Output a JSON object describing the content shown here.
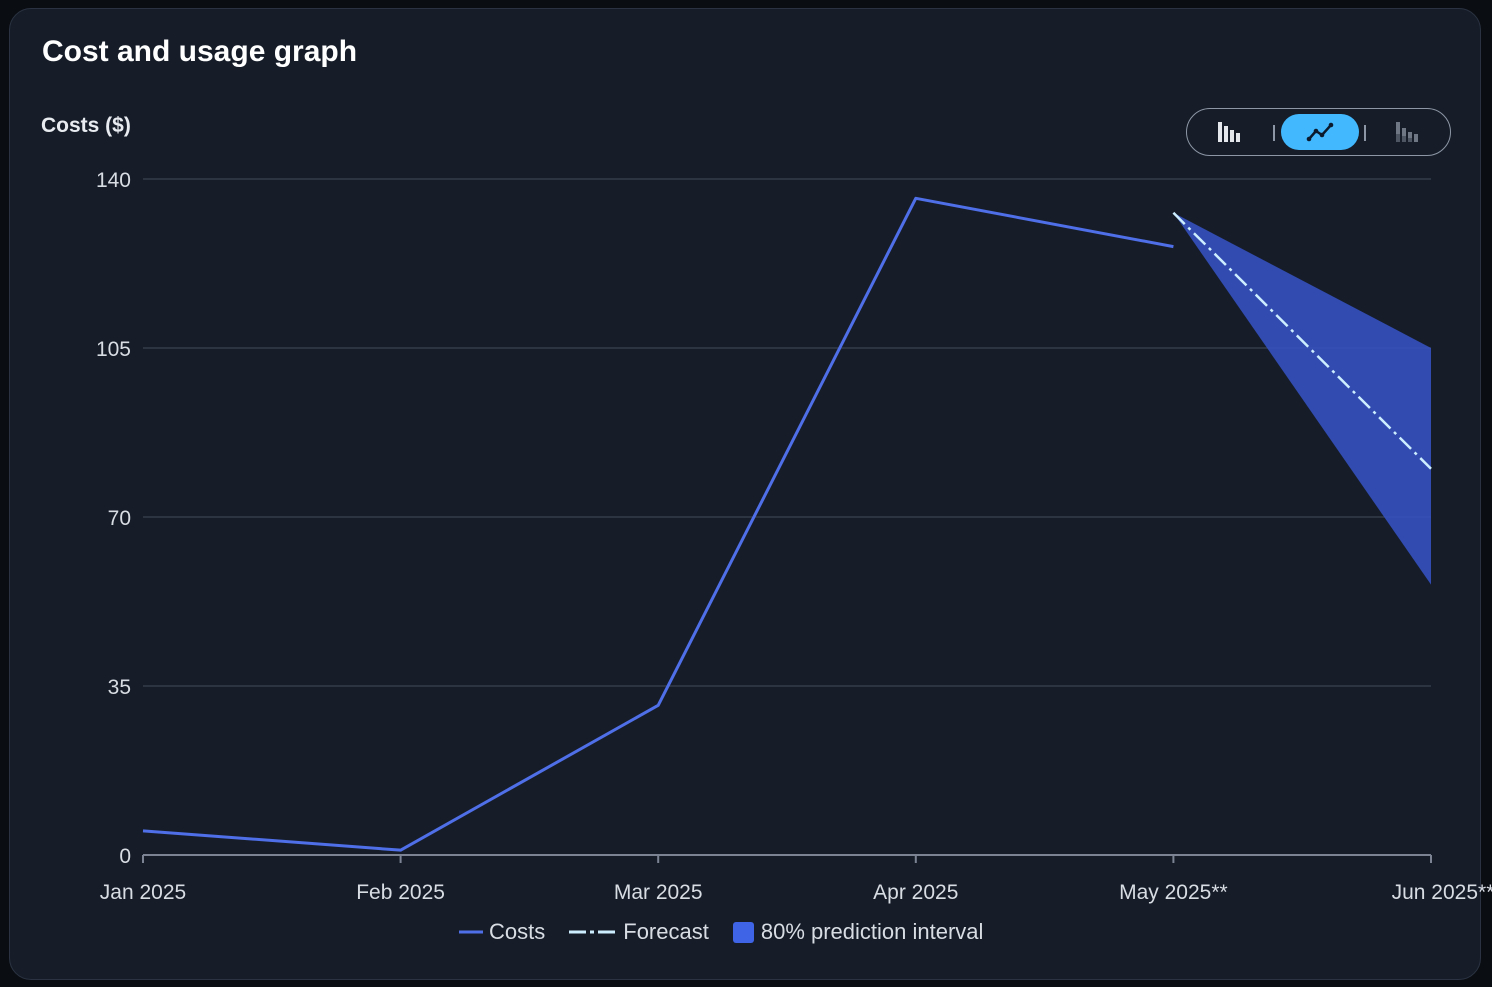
{
  "card": {
    "title": "Cost and usage graph"
  },
  "toggle": {
    "buttons": [
      {
        "icon": "bar-chart-icon",
        "active": false
      },
      {
        "icon": "line-chart-icon",
        "active": true
      },
      {
        "icon": "stacked-bar-chart-icon",
        "active": false
      }
    ]
  },
  "colors": {
    "costs": "#4f6fe8",
    "forecast": "#cdeeff",
    "interval": "#3654c8",
    "toggle_active": "#42b8fe",
    "grid": "#3a4250",
    "axis_text": "#d8dce3",
    "background": "#161d29"
  },
  "chart_data": {
    "type": "line",
    "title": "",
    "ylabel": "Costs ($)",
    "xlabel": "",
    "categories": [
      "Jan 2025",
      "Feb 2025",
      "Mar 2025",
      "Apr 2025",
      "May 2025**",
      "Jun 2025**"
    ],
    "ylim": [
      0,
      140
    ],
    "yticks": [
      0,
      35,
      70,
      105,
      140
    ],
    "grid": true,
    "legend_position": "bottom",
    "series": [
      {
        "name": "Costs",
        "style": "solid",
        "values": [
          5,
          1,
          31,
          136,
          126,
          null
        ]
      },
      {
        "name": "Forecast",
        "style": "dash-dot",
        "values": [
          null,
          null,
          null,
          null,
          133,
          80
        ]
      }
    ],
    "interval": {
      "name": "80% prediction interval",
      "lower": [
        null,
        null,
        null,
        null,
        133,
        56
      ],
      "upper": [
        null,
        null,
        null,
        null,
        133,
        105
      ]
    }
  }
}
